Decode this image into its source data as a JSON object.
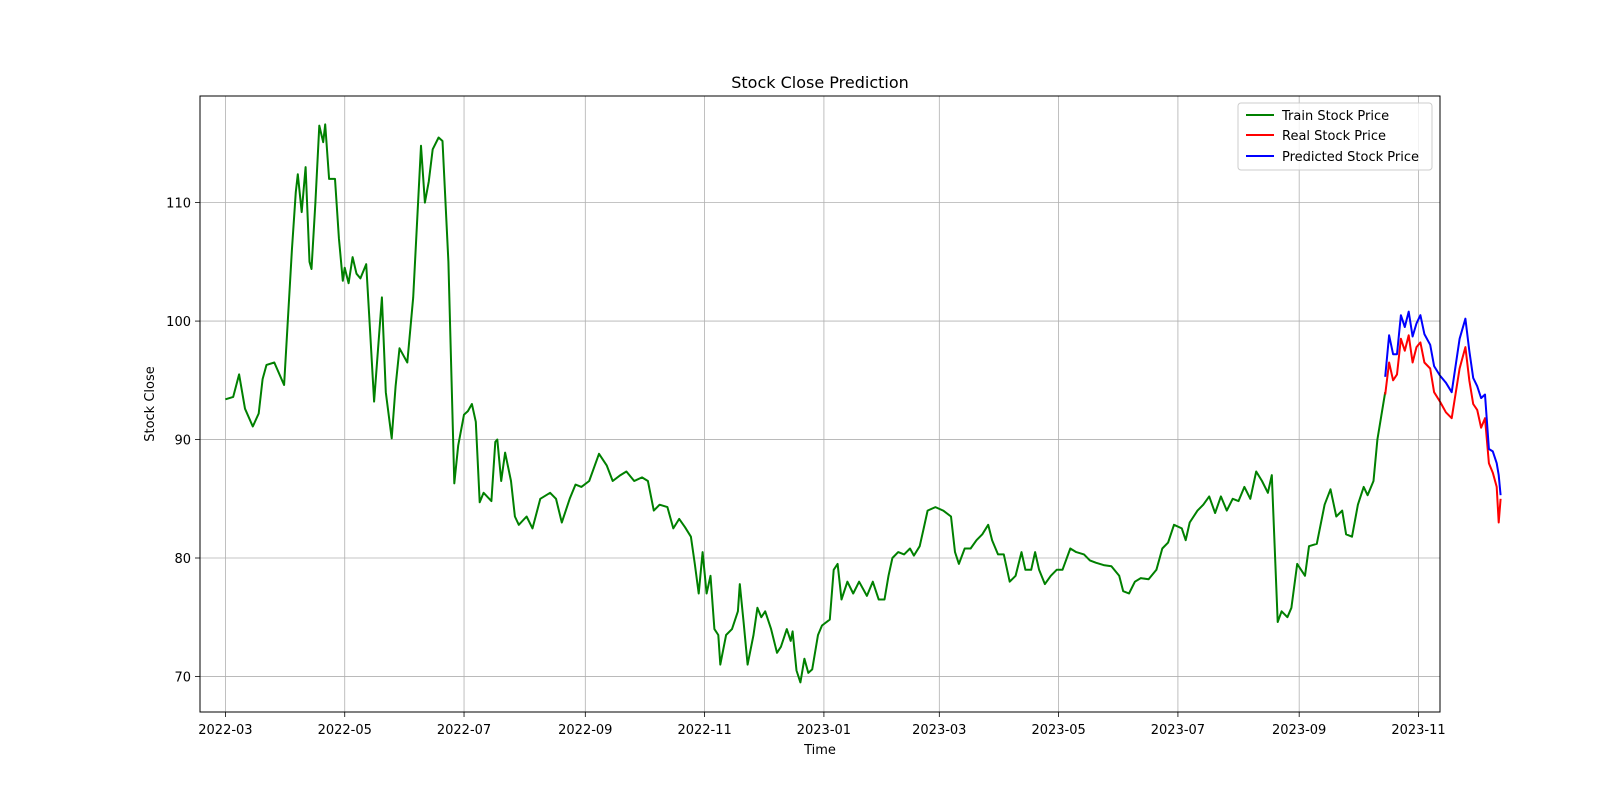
{
  "chart_data": {
    "type": "line",
    "title": "Stock Close Prediction",
    "xlabel": "Time",
    "ylabel": "Stock Close",
    "xlim": [
      "2022-02-16",
      "2023-11-12"
    ],
    "ylim": [
      67,
      119
    ],
    "x_ticks": [
      "2022-03",
      "2022-05",
      "2022-07",
      "2022-09",
      "2022-11",
      "2023-01",
      "2023-03",
      "2023-05",
      "2023-07",
      "2023-09",
      "2023-11"
    ],
    "y_ticks": [
      70,
      80,
      90,
      100,
      110
    ],
    "grid": true,
    "legend_position": "upper right",
    "series": [
      {
        "name": "Train Stock Price",
        "color": "#008000",
        "points": [
          [
            "2022-03-01",
            93.4
          ],
          [
            "2022-03-05",
            93.6
          ],
          [
            "2022-03-08",
            95.5
          ],
          [
            "2022-03-11",
            92.6
          ],
          [
            "2022-03-15",
            91.1
          ],
          [
            "2022-03-18",
            92.2
          ],
          [
            "2022-03-20",
            95.1
          ],
          [
            "2022-03-22",
            96.3
          ],
          [
            "2022-03-26",
            96.5
          ],
          [
            "2022-03-31",
            94.6
          ],
          [
            "2022-04-04",
            106.0
          ],
          [
            "2022-04-06",
            110.9
          ],
          [
            "2022-04-07",
            112.4
          ],
          [
            "2022-04-09",
            109.2
          ],
          [
            "2022-04-11",
            113.0
          ],
          [
            "2022-04-13",
            105.0
          ],
          [
            "2022-04-14",
            104.4
          ],
          [
            "2022-04-16",
            110.0
          ],
          [
            "2022-04-18",
            116.5
          ],
          [
            "2022-04-20",
            115.1
          ],
          [
            "2022-04-21",
            116.6
          ],
          [
            "2022-04-23",
            112.0
          ],
          [
            "2022-04-26",
            112.0
          ],
          [
            "2022-04-28",
            107.0
          ],
          [
            "2022-04-30",
            103.4
          ],
          [
            "2022-05-01",
            104.5
          ],
          [
            "2022-05-03",
            103.2
          ],
          [
            "2022-05-05",
            105.4
          ],
          [
            "2022-05-07",
            104.0
          ],
          [
            "2022-05-09",
            103.6
          ],
          [
            "2022-05-12",
            104.8
          ],
          [
            "2022-05-14",
            99.0
          ],
          [
            "2022-05-16",
            93.2
          ],
          [
            "2022-05-20",
            102.0
          ],
          [
            "2022-05-22",
            94.0
          ],
          [
            "2022-05-25",
            90.1
          ],
          [
            "2022-05-27",
            94.5
          ],
          [
            "2022-05-29",
            97.7
          ],
          [
            "2022-06-02",
            96.5
          ],
          [
            "2022-06-05",
            102.0
          ],
          [
            "2022-06-09",
            114.8
          ],
          [
            "2022-06-11",
            110.0
          ],
          [
            "2022-06-13",
            111.8
          ],
          [
            "2022-06-15",
            114.5
          ],
          [
            "2022-06-18",
            115.5
          ],
          [
            "2022-06-20",
            115.2
          ],
          [
            "2022-06-23",
            105.0
          ],
          [
            "2022-06-26",
            86.3
          ],
          [
            "2022-06-28",
            89.5
          ],
          [
            "2022-07-01",
            92.1
          ],
          [
            "2022-07-03",
            92.4
          ],
          [
            "2022-07-05",
            93.0
          ],
          [
            "2022-07-07",
            91.5
          ],
          [
            "2022-07-09",
            84.7
          ],
          [
            "2022-07-11",
            85.5
          ],
          [
            "2022-07-15",
            84.8
          ],
          [
            "2022-07-17",
            89.8
          ],
          [
            "2022-07-18",
            90.0
          ],
          [
            "2022-07-20",
            86.5
          ],
          [
            "2022-07-22",
            88.9
          ],
          [
            "2022-07-25",
            86.5
          ],
          [
            "2022-07-27",
            83.5
          ],
          [
            "2022-07-29",
            82.8
          ],
          [
            "2022-08-02",
            83.5
          ],
          [
            "2022-08-05",
            82.5
          ],
          [
            "2022-08-09",
            85.0
          ],
          [
            "2022-08-14",
            85.5
          ],
          [
            "2022-08-17",
            85.0
          ],
          [
            "2022-08-20",
            83.0
          ],
          [
            "2022-08-24",
            85.0
          ],
          [
            "2022-08-27",
            86.2
          ],
          [
            "2022-08-30",
            86.0
          ],
          [
            "2022-09-03",
            86.5
          ],
          [
            "2022-09-08",
            88.8
          ],
          [
            "2022-09-12",
            87.8
          ],
          [
            "2022-09-15",
            86.5
          ],
          [
            "2022-09-19",
            87.0
          ],
          [
            "2022-09-22",
            87.3
          ],
          [
            "2022-09-26",
            86.5
          ],
          [
            "2022-09-30",
            86.8
          ],
          [
            "2022-10-03",
            86.5
          ],
          [
            "2022-10-06",
            84.0
          ],
          [
            "2022-10-09",
            84.5
          ],
          [
            "2022-10-13",
            84.3
          ],
          [
            "2022-10-16",
            82.5
          ],
          [
            "2022-10-19",
            83.3
          ],
          [
            "2022-10-22",
            82.6
          ],
          [
            "2022-10-25",
            81.8
          ],
          [
            "2022-10-27",
            79.5
          ],
          [
            "2022-10-29",
            77.0
          ],
          [
            "2022-10-31",
            80.5
          ],
          [
            "2022-11-02",
            77.0
          ],
          [
            "2022-11-04",
            78.5
          ],
          [
            "2022-11-06",
            74.0
          ],
          [
            "2022-11-08",
            73.5
          ],
          [
            "2022-11-09",
            71.0
          ],
          [
            "2022-11-12",
            73.5
          ],
          [
            "2022-11-15",
            74.0
          ],
          [
            "2022-11-18",
            75.5
          ],
          [
            "2022-11-19",
            77.8
          ],
          [
            "2022-11-21",
            74.5
          ],
          [
            "2022-11-23",
            71.0
          ],
          [
            "2022-11-26",
            73.5
          ],
          [
            "2022-11-28",
            75.8
          ],
          [
            "2022-11-30",
            75.0
          ],
          [
            "2022-12-02",
            75.5
          ],
          [
            "2022-12-05",
            74.0
          ],
          [
            "2022-12-08",
            72.0
          ],
          [
            "2022-12-10",
            72.5
          ],
          [
            "2022-12-13",
            74.0
          ],
          [
            "2022-12-15",
            73.0
          ],
          [
            "2022-12-16",
            73.8
          ],
          [
            "2022-12-18",
            70.5
          ],
          [
            "2022-12-20",
            69.5
          ],
          [
            "2022-12-22",
            71.5
          ],
          [
            "2022-12-24",
            70.3
          ],
          [
            "2022-12-26",
            70.6
          ],
          [
            "2022-12-29",
            73.5
          ],
          [
            "2022-12-31",
            74.3
          ],
          [
            "2023-01-04",
            74.8
          ],
          [
            "2023-01-06",
            79.0
          ],
          [
            "2023-01-08",
            79.5
          ],
          [
            "2023-01-10",
            76.5
          ],
          [
            "2023-01-13",
            78.0
          ],
          [
            "2023-01-16",
            77.0
          ],
          [
            "2023-01-19",
            78.0
          ],
          [
            "2023-01-23",
            76.8
          ],
          [
            "2023-01-26",
            78.0
          ],
          [
            "2023-01-29",
            76.5
          ],
          [
            "2023-02-01",
            76.5
          ],
          [
            "2023-02-03",
            78.5
          ],
          [
            "2023-02-05",
            80.0
          ],
          [
            "2023-02-08",
            80.5
          ],
          [
            "2023-02-11",
            80.3
          ],
          [
            "2023-02-14",
            80.8
          ],
          [
            "2023-02-16",
            80.2
          ],
          [
            "2023-02-19",
            81.0
          ],
          [
            "2023-02-21",
            82.5
          ],
          [
            "2023-02-23",
            84.0
          ],
          [
            "2023-02-27",
            84.3
          ],
          [
            "2023-03-03",
            84.0
          ],
          [
            "2023-03-07",
            83.5
          ],
          [
            "2023-03-09",
            80.5
          ],
          [
            "2023-03-11",
            79.5
          ],
          [
            "2023-03-14",
            80.8
          ],
          [
            "2023-03-17",
            80.8
          ],
          [
            "2023-03-20",
            81.5
          ],
          [
            "2023-03-23",
            82.0
          ],
          [
            "2023-03-26",
            82.8
          ],
          [
            "2023-03-28",
            81.5
          ],
          [
            "2023-03-31",
            80.3
          ],
          [
            "2023-04-03",
            80.3
          ],
          [
            "2023-04-06",
            78.0
          ],
          [
            "2023-04-09",
            78.5
          ],
          [
            "2023-04-12",
            80.5
          ],
          [
            "2023-04-14",
            79.0
          ],
          [
            "2023-04-17",
            79.0
          ],
          [
            "2023-04-19",
            80.5
          ],
          [
            "2023-04-21",
            79.0
          ],
          [
            "2023-04-24",
            77.8
          ],
          [
            "2023-04-27",
            78.5
          ],
          [
            "2023-04-30",
            79.0
          ],
          [
            "2023-05-03",
            79.0
          ],
          [
            "2023-05-07",
            80.8
          ],
          [
            "2023-05-10",
            80.5
          ],
          [
            "2023-05-14",
            80.3
          ],
          [
            "2023-05-17",
            79.8
          ],
          [
            "2023-05-20",
            79.6
          ],
          [
            "2023-05-24",
            79.4
          ],
          [
            "2023-05-28",
            79.3
          ],
          [
            "2023-06-01",
            78.5
          ],
          [
            "2023-06-03",
            77.2
          ],
          [
            "2023-06-06",
            77.0
          ],
          [
            "2023-06-09",
            78.0
          ],
          [
            "2023-06-12",
            78.3
          ],
          [
            "2023-06-16",
            78.2
          ],
          [
            "2023-06-20",
            79.0
          ],
          [
            "2023-06-23",
            80.8
          ],
          [
            "2023-06-26",
            81.3
          ],
          [
            "2023-06-29",
            82.8
          ],
          [
            "2023-07-03",
            82.5
          ],
          [
            "2023-07-05",
            81.5
          ],
          [
            "2023-07-07",
            83.0
          ],
          [
            "2023-07-11",
            84.0
          ],
          [
            "2023-07-14",
            84.5
          ],
          [
            "2023-07-17",
            85.2
          ],
          [
            "2023-07-20",
            83.8
          ],
          [
            "2023-07-23",
            85.2
          ],
          [
            "2023-07-26",
            84.0
          ],
          [
            "2023-07-29",
            85.0
          ],
          [
            "2023-08-01",
            84.8
          ],
          [
            "2023-08-04",
            86.0
          ],
          [
            "2023-08-07",
            85.0
          ],
          [
            "2023-08-10",
            87.3
          ],
          [
            "2023-08-13",
            86.5
          ],
          [
            "2023-08-16",
            85.5
          ],
          [
            "2023-08-18",
            87.0
          ],
          [
            "2023-08-21",
            74.6
          ],
          [
            "2023-08-23",
            75.5
          ],
          [
            "2023-08-26",
            75.0
          ],
          [
            "2023-08-28",
            75.8
          ],
          [
            "2023-08-31",
            79.5
          ],
          [
            "2023-09-04",
            78.5
          ],
          [
            "2023-09-06",
            81.0
          ],
          [
            "2023-09-10",
            81.2
          ],
          [
            "2023-09-14",
            84.5
          ],
          [
            "2023-09-17",
            85.8
          ],
          [
            "2023-09-20",
            83.5
          ],
          [
            "2023-09-23",
            84.0
          ],
          [
            "2023-09-25",
            82.0
          ],
          [
            "2023-09-28",
            81.8
          ],
          [
            "2023-10-01",
            84.5
          ],
          [
            "2023-10-04",
            86.0
          ],
          [
            "2023-10-06",
            85.3
          ],
          [
            "2023-10-09",
            86.5
          ],
          [
            "2023-10-11",
            90.0
          ],
          [
            "2023-10-13",
            92.0
          ],
          [
            "2023-10-15",
            94.0
          ]
        ]
      },
      {
        "name": "Real Stock Price",
        "color": "#ff0000",
        "points": [
          [
            "2023-10-15",
            93.8
          ],
          [
            "2023-10-17",
            96.5
          ],
          [
            "2023-10-19",
            95.0
          ],
          [
            "2023-10-21",
            95.5
          ],
          [
            "2023-10-23",
            98.5
          ],
          [
            "2023-10-25",
            97.5
          ],
          [
            "2023-10-27",
            98.8
          ],
          [
            "2023-10-29",
            96.5
          ],
          [
            "2023-10-31",
            97.8
          ],
          [
            "2023-11-02",
            98.2
          ],
          [
            "2023-11-04",
            96.5
          ],
          [
            "2023-11-07",
            96.0
          ],
          [
            "2023-11-09",
            94.0
          ],
          [
            "2023-11-12",
            93.2
          ],
          [
            "2023-11-15",
            92.3
          ],
          [
            "2023-11-18",
            91.8
          ],
          [
            "2023-11-22",
            96.0
          ],
          [
            "2023-11-25",
            97.8
          ],
          [
            "2023-11-27",
            95.0
          ],
          [
            "2023-11-29",
            93.0
          ],
          [
            "2023-12-01",
            92.5
          ],
          [
            "2023-12-03",
            91.0
          ],
          [
            "2023-12-05",
            91.8
          ],
          [
            "2023-12-07",
            88.0
          ],
          [
            "2023-12-09",
            87.2
          ],
          [
            "2023-12-11",
            86.0
          ],
          [
            "2023-12-12",
            83.0
          ],
          [
            "2023-12-13",
            85.0
          ]
        ]
      },
      {
        "name": "Predicted Stock Price",
        "color": "#0000ff",
        "points": [
          [
            "2023-10-15",
            95.3
          ],
          [
            "2023-10-17",
            98.8
          ],
          [
            "2023-10-19",
            97.2
          ],
          [
            "2023-10-21",
            97.2
          ],
          [
            "2023-10-23",
            100.5
          ],
          [
            "2023-10-25",
            99.5
          ],
          [
            "2023-10-27",
            100.8
          ],
          [
            "2023-10-29",
            98.7
          ],
          [
            "2023-10-31",
            99.8
          ],
          [
            "2023-11-02",
            100.5
          ],
          [
            "2023-11-04",
            98.9
          ],
          [
            "2023-11-07",
            98.0
          ],
          [
            "2023-11-09",
            96.2
          ],
          [
            "2023-11-12",
            95.4
          ],
          [
            "2023-11-15",
            94.8
          ],
          [
            "2023-11-18",
            94.0
          ],
          [
            "2023-11-22",
            98.5
          ],
          [
            "2023-11-25",
            100.2
          ],
          [
            "2023-11-27",
            97.5
          ],
          [
            "2023-11-29",
            95.2
          ],
          [
            "2023-12-01",
            94.5
          ],
          [
            "2023-12-03",
            93.5
          ],
          [
            "2023-12-05",
            93.8
          ],
          [
            "2023-12-07",
            89.2
          ],
          [
            "2023-12-09",
            89.0
          ],
          [
            "2023-12-11",
            88.0
          ],
          [
            "2023-12-12",
            87.0
          ],
          [
            "2023-12-13",
            85.3
          ]
        ]
      }
    ]
  }
}
